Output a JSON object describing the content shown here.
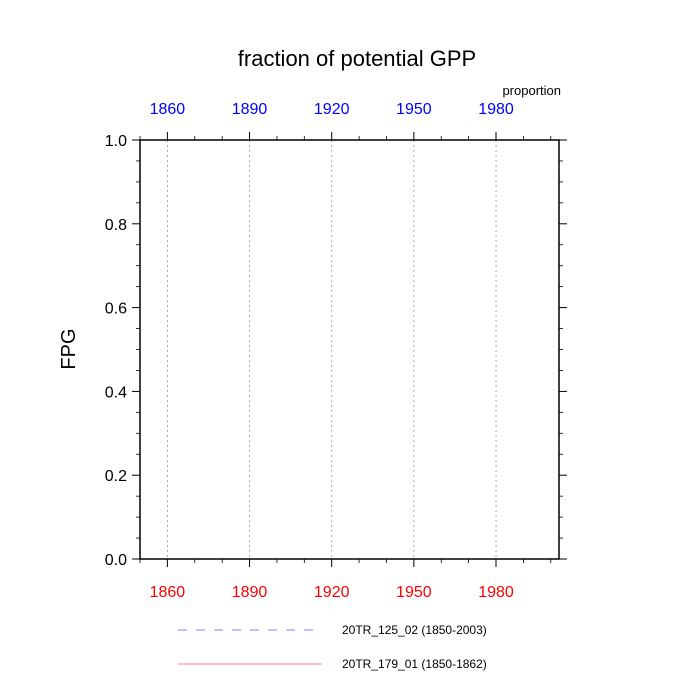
{
  "chart_data": {
    "type": "line",
    "title": "fraction of potential GPP",
    "units_label": "proportion",
    "ylabel": "FPG",
    "ylim": [
      0,
      1
    ],
    "y_ticks": [
      "0.0",
      "0.2",
      "0.4",
      "0.6",
      "0.8",
      "1.0"
    ],
    "y_tick_values": [
      0,
      0.2,
      0.4,
      0.6,
      0.8,
      1.0
    ],
    "xlim": [
      1850,
      2003
    ],
    "x_tick_values": [
      1860,
      1890,
      1920,
      1950,
      1980
    ],
    "x_ticks_bottom": [
      "1860",
      "1890",
      "1920",
      "1950",
      "1980"
    ],
    "x_ticks_top": [
      "1860",
      "1890",
      "1920",
      "1950",
      "1980"
    ],
    "x_ticks_bottom_color": "#ff0000",
    "x_ticks_top_color": "#0000ff",
    "grid": "vertical dotted at major x ticks",
    "series": [
      {
        "name": "20TR_125_02 (1850-2003)",
        "color": "#8080ff",
        "dash": "dashed",
        "x": [],
        "y": []
      },
      {
        "name": "20TR_179_01 (1850-1862)",
        "color": "#ff8080",
        "dash": "solid",
        "x": [],
        "y": []
      }
    ]
  }
}
